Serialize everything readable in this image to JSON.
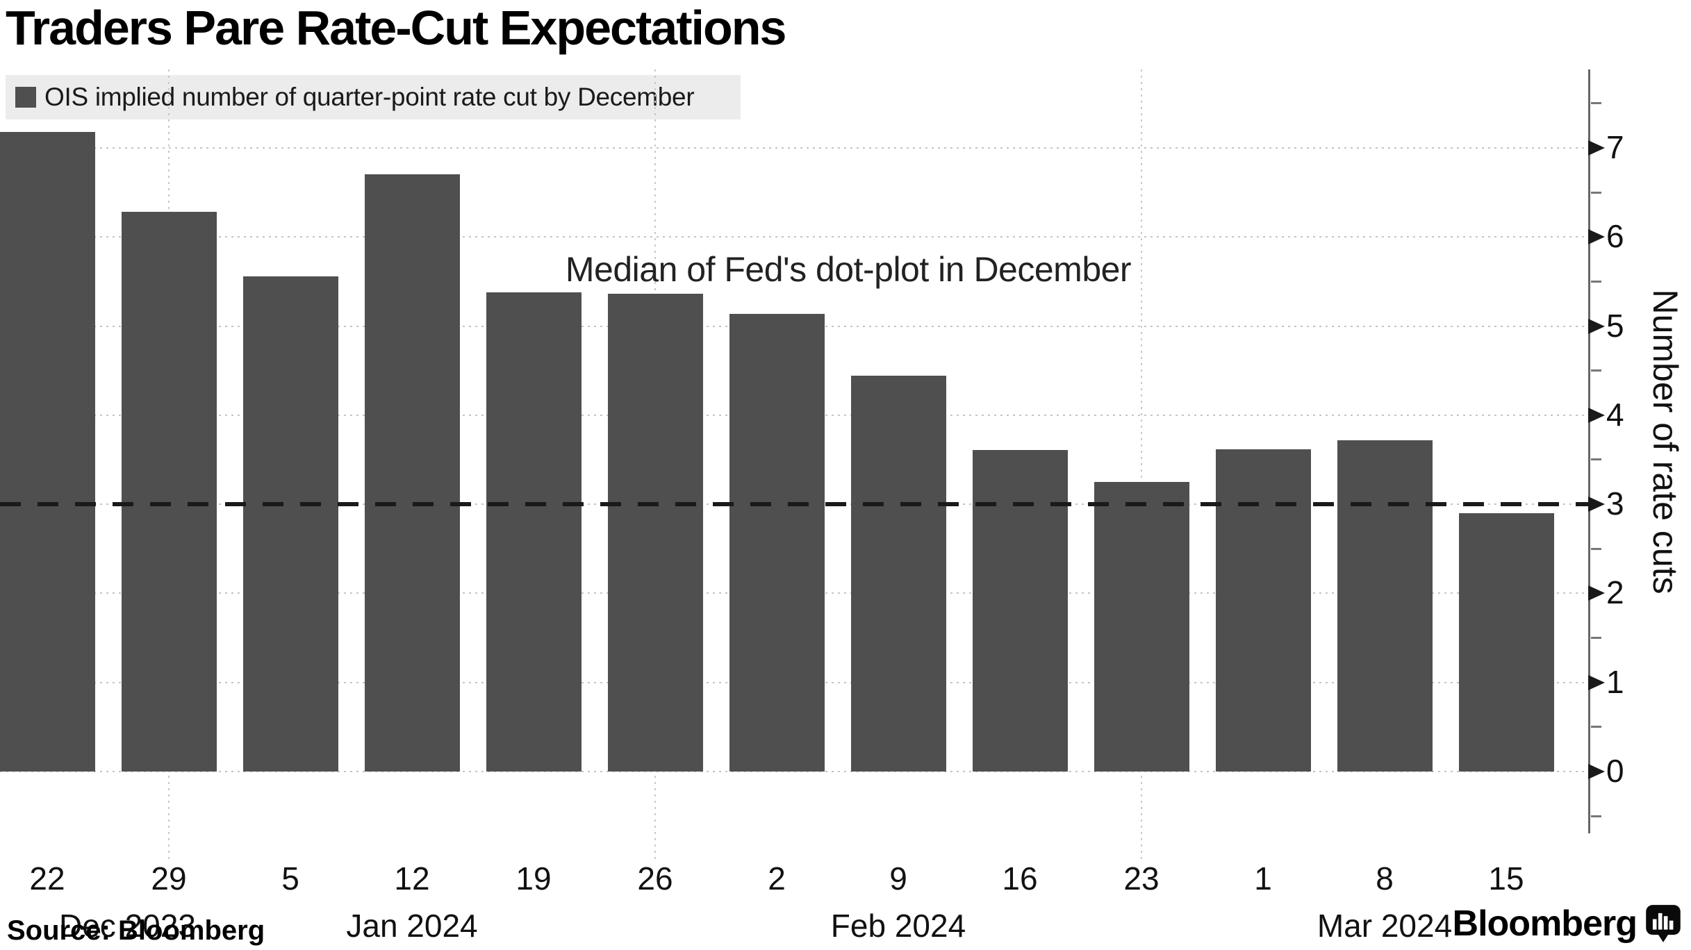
{
  "title": "Traders Pare Rate-Cut Expectations",
  "legend": {
    "label": "OIS implied number of quarter-point rate cut by December"
  },
  "annotation": {
    "text": "Median of Fed's dot-plot in December"
  },
  "y_axis": {
    "title": "Number of rate cuts"
  },
  "source": {
    "text": "Source: Bloomberg"
  },
  "brand": {
    "text": "Bloomberg"
  },
  "chart_data": {
    "type": "bar",
    "title": "Traders Pare Rate-Cut Expectations",
    "legend_label": "OIS implied number of quarter-point rate cut by December",
    "categories": [
      "Dec 22, 2023",
      "Dec 29, 2023",
      "Jan 5, 2024",
      "Jan 12, 2024",
      "Jan 19, 2024",
      "Jan 26, 2024",
      "Feb 2, 2024",
      "Feb 9, 2024",
      "Feb 16, 2024",
      "Feb 23, 2024",
      "Mar 1, 2024",
      "Mar 8, 2024",
      "Mar 15, 2024"
    ],
    "x_tick_labels": [
      "22",
      "29",
      "5",
      "12",
      "19",
      "26",
      "2",
      "9",
      "16",
      "23",
      "1",
      "8",
      "15"
    ],
    "month_labels": [
      {
        "text": "Dec 2023",
        "index": 0
      },
      {
        "text": "Jan 2024",
        "index": 3
      },
      {
        "text": "Feb 2024",
        "index": 7
      },
      {
        "text": "Mar 2024",
        "index": 11
      }
    ],
    "values": [
      7.18,
      6.28,
      5.56,
      6.7,
      5.38,
      5.36,
      5.14,
      4.44,
      3.61,
      3.25,
      3.62,
      3.72,
      2.9
    ],
    "ylabel": "Number of rate cuts",
    "ylim": [
      0,
      7.9
    ],
    "yticks": [
      0,
      1,
      2,
      3,
      4,
      5,
      6,
      7
    ],
    "minor_tick_step": 0.5,
    "grid": true,
    "legend_position": "top-left",
    "bar_color": "#4f4f4f",
    "reference_line": {
      "value": 3,
      "style": "dashed",
      "label": "Median of Fed's dot-plot in December"
    },
    "vertical_gridline_category_indices": [
      1,
      5,
      9
    ]
  }
}
